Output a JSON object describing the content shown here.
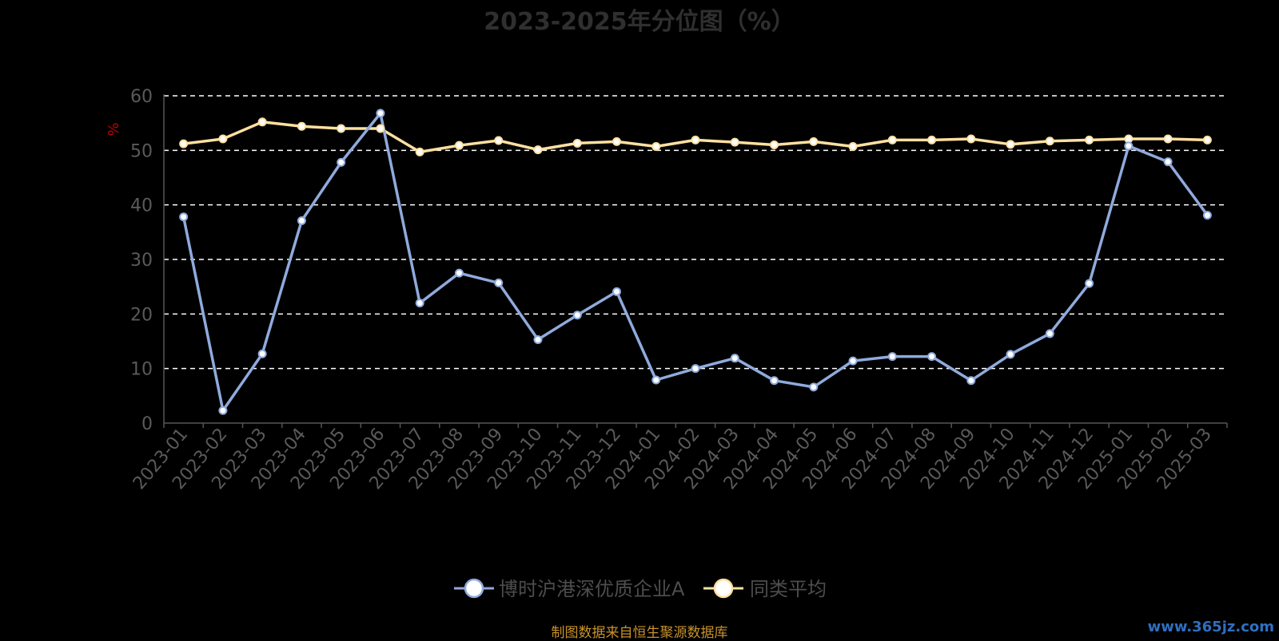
{
  "chart_data": {
    "type": "line",
    "title": "2023-2025年分位图（%）",
    "ylabel": "%",
    "xlabel": "",
    "ylim": [
      0,
      60
    ],
    "yticks": [
      0,
      10,
      20,
      30,
      40,
      50,
      60
    ],
    "grid": true,
    "legend_position": "bottom",
    "x": [
      "2023-01",
      "2023-02",
      "2023-03",
      "2023-04",
      "2023-05",
      "2023-06",
      "2023-07",
      "2023-08",
      "2023-09",
      "2023-10",
      "2023-11",
      "2023-12",
      "2024-01",
      "2024-02",
      "2024-03",
      "2024-04",
      "2024-05",
      "2024-06",
      "2024-07",
      "2024-08",
      "2024-09",
      "2024-10",
      "2024-11",
      "2024-12",
      "2025-01",
      "2025-02",
      "2025-03"
    ],
    "series": [
      {
        "name": "博时沪港深优质企业A",
        "color": "#8faadc",
        "values": [
          37.8,
          2.3,
          12.7,
          37.1,
          47.8,
          56.8,
          22.0,
          27.5,
          25.7,
          15.3,
          19.8,
          24.1,
          7.9,
          10.0,
          11.9,
          7.8,
          6.6,
          11.4,
          12.2,
          12.2,
          7.8,
          12.6,
          16.4,
          25.6,
          50.8,
          47.9,
          38.1
        ]
      },
      {
        "name": "同类平均",
        "color": "#ffe0a0",
        "values": [
          51.2,
          52.1,
          55.2,
          54.4,
          54.0,
          54.0,
          49.7,
          50.9,
          51.8,
          50.1,
          51.3,
          51.6,
          50.7,
          51.9,
          51.5,
          51.0,
          51.6,
          50.7,
          51.9,
          51.9,
          52.1,
          51.1,
          51.7,
          51.9,
          52.1,
          52.1,
          51.9
        ]
      }
    ]
  },
  "source_note": "制图数据来自恒生聚源数据库",
  "watermark": "www.365jz.com"
}
